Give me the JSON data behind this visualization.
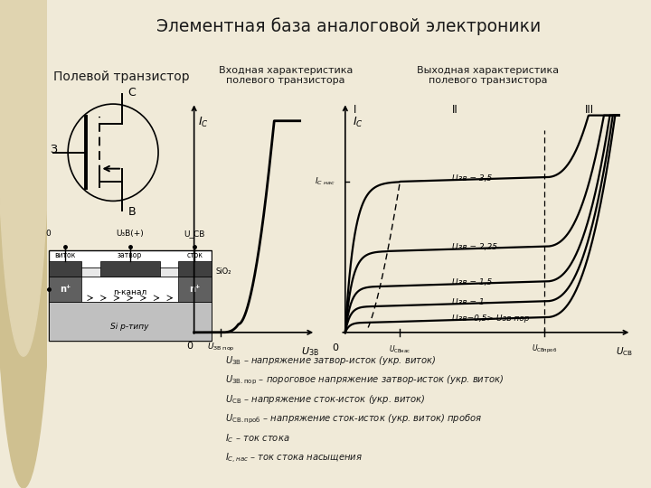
{
  "title": "Элементная база аналоговой электроники",
  "left_label": "Полевой транзистор",
  "input_char_title": "Входная характеристика\nполевого транзистора",
  "output_char_title": "Выходная характеристика\nполевого транзистора",
  "bg_color": "#f0ead8",
  "left_bg_color": "#e0d4b0",
  "text_color": "#1a1a1a",
  "legend_lines": [
    "Uзв – напряжение затвор-исток (укр. виток)",
    "Uзв.пор – пороговое напряжение затвор-исток (укр. виток)",
    "Uсв – напряжение сток-исток (укр. виток)",
    "Uсв.проб – напряжение сток-исток (укр. виток) пробоя",
    "Iс – ток стока",
    "Iс,нас – ток стока насыщения"
  ],
  "output_curve_labels": [
    "Uзв = 3,5",
    "Uзв = 2,25",
    "Uзв = 1,5",
    "Uзв = 1",
    "Uзв=0,5> Uзв пор"
  ]
}
